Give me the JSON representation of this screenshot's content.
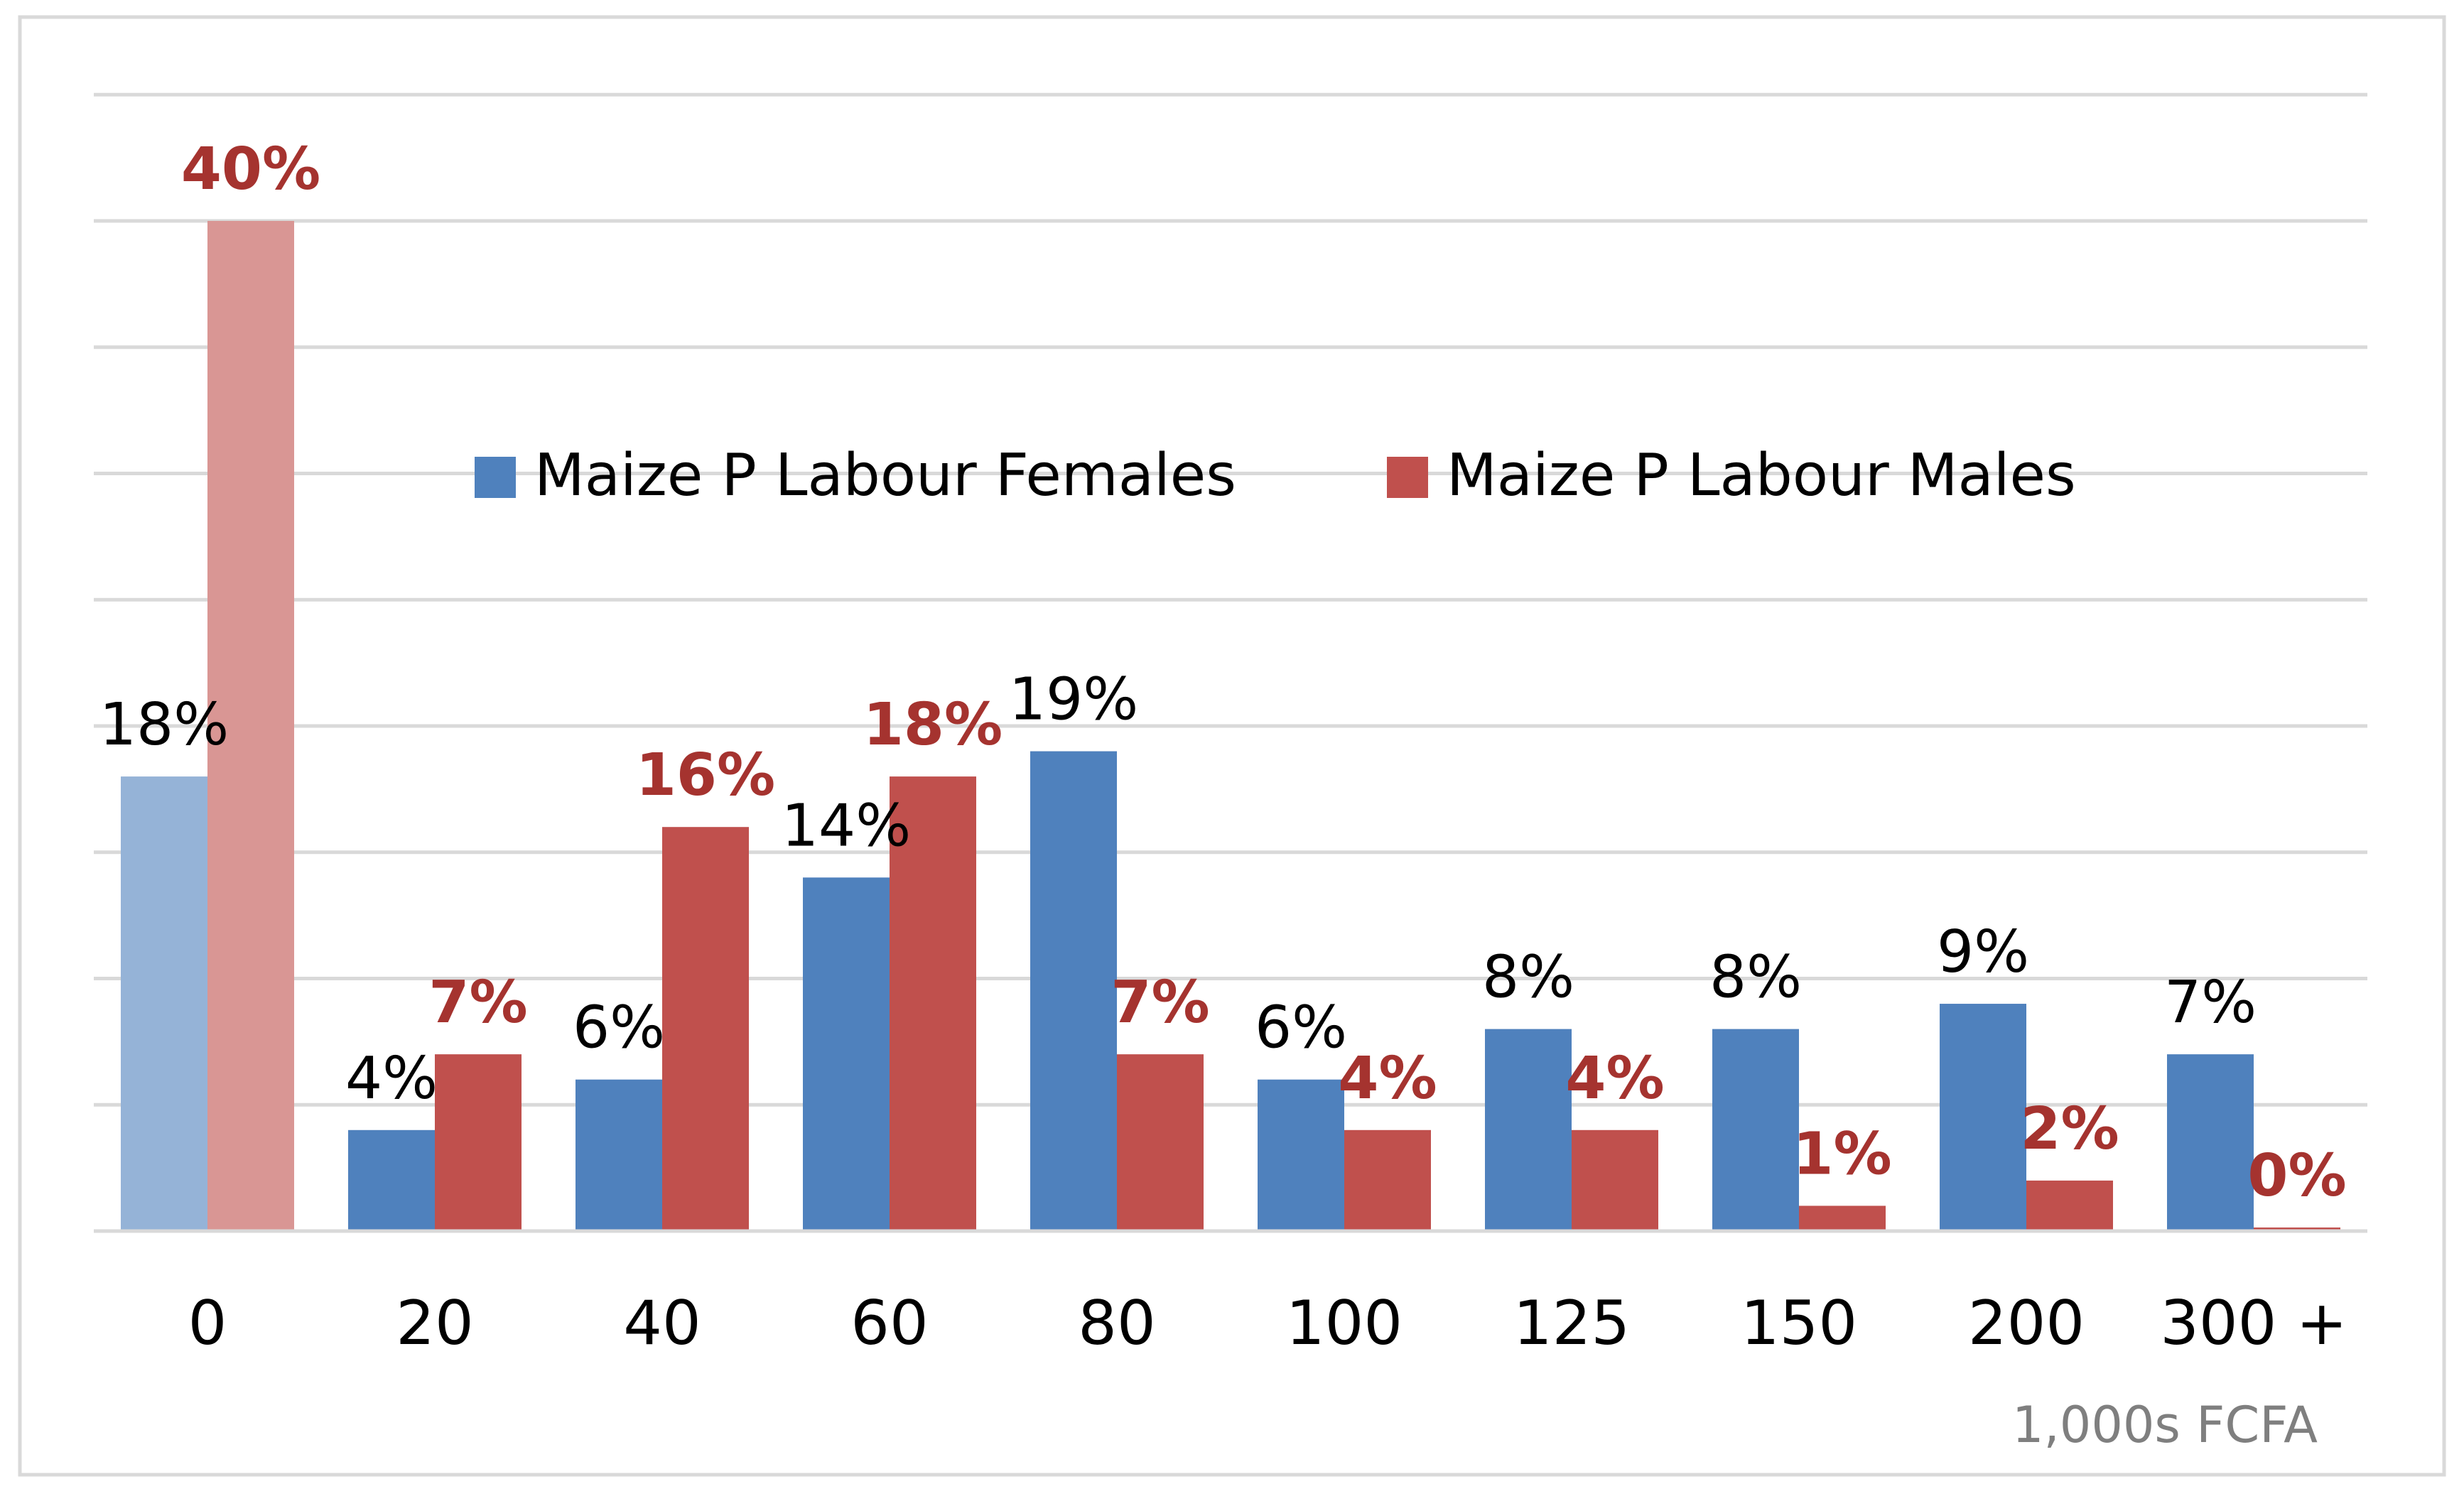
{
  "chart_data": {
    "type": "bar",
    "categories": [
      "0",
      "20",
      "40",
      "60",
      "80",
      "100",
      "125",
      "150",
      "200",
      "300 +"
    ],
    "series": [
      {
        "name": "Maize P Labour Females",
        "values": [
          18,
          4,
          6,
          14,
          19,
          6,
          8,
          8,
          9,
          7
        ],
        "labels": [
          "18%",
          "4%",
          "6%",
          "14%",
          "19%",
          "6%",
          "8%",
          "8%",
          "9%",
          "7%"
        ],
        "color": "#4F81BD",
        "highlight_color": "#95B3D7",
        "label_color": "#000000"
      },
      {
        "name": "Maize P Labour Males",
        "values": [
          40,
          7,
          16,
          18,
          7,
          4,
          4,
          1,
          2,
          0
        ],
        "labels": [
          "40%",
          "7%",
          "16%",
          "18%",
          "7%",
          "4%",
          "4%",
          "1%",
          "2%",
          "0%"
        ],
        "color": "#C0504D",
        "highlight_color": "#D99694",
        "label_color": "#A5332F"
      }
    ],
    "highlighted_category_index": 0,
    "xlabel": "1,000s FCFA",
    "ylabel": "",
    "ylim": [
      0,
      45
    ],
    "gridlines": true,
    "legend_position": "center"
  }
}
